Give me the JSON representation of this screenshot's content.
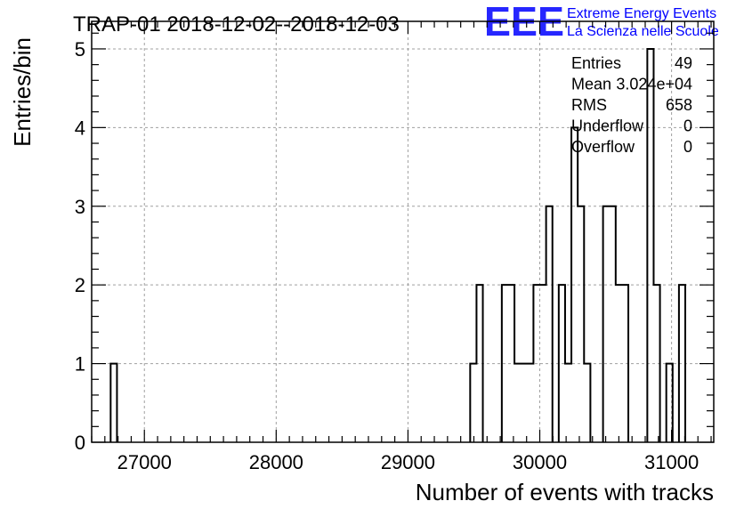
{
  "chart_data": {
    "type": "bar",
    "title": "TRAP-01 2018-12-02--2018-12-03",
    "xlabel": "Number of events with tracks",
    "ylabel": "Entries/bin",
    "xlim": [
      26600,
      31320
    ],
    "ylim": [
      0,
      5.35
    ],
    "x_ticks": [
      27000,
      28000,
      29000,
      30000,
      31000
    ],
    "y_ticks": [
      0,
      1,
      2,
      3,
      4,
      5
    ],
    "grid": true,
    "bin_width": 48,
    "bins": [
      {
        "x0": 26744,
        "value": 1
      },
      {
        "x0": 29472,
        "value": 1
      },
      {
        "x0": 29520,
        "value": 2
      },
      {
        "x0": 29712,
        "value": 2
      },
      {
        "x0": 29760,
        "value": 2
      },
      {
        "x0": 29808,
        "value": 1
      },
      {
        "x0": 29856,
        "value": 1
      },
      {
        "x0": 29904,
        "value": 1
      },
      {
        "x0": 29952,
        "value": 2
      },
      {
        "x0": 30000,
        "value": 2
      },
      {
        "x0": 30048,
        "value": 3
      },
      {
        "x0": 30144,
        "value": 2
      },
      {
        "x0": 30192,
        "value": 1
      },
      {
        "x0": 30240,
        "value": 4
      },
      {
        "x0": 30288,
        "value": 3
      },
      {
        "x0": 30336,
        "value": 1
      },
      {
        "x0": 30480,
        "value": 3
      },
      {
        "x0": 30528,
        "value": 3
      },
      {
        "x0": 30576,
        "value": 2
      },
      {
        "x0": 30624,
        "value": 2
      },
      {
        "x0": 30816,
        "value": 5
      },
      {
        "x0": 30864,
        "value": 2
      },
      {
        "x0": 30960,
        "value": 1
      },
      {
        "x0": 31056,
        "value": 2
      }
    ],
    "stats": {
      "placement": "top-right",
      "rows": [
        {
          "label": "Entries",
          "value": "49"
        },
        {
          "label": "Mean",
          "value": "3.024e+04"
        },
        {
          "label": "RMS",
          "value": "658"
        },
        {
          "label": "Underflow",
          "value": "0"
        },
        {
          "label": "Overflow",
          "value": "0"
        }
      ]
    },
    "logo": {
      "mark": "EEE",
      "line1": "Extreme Energy Events",
      "line2": "La Scienza nelle Scuole",
      "color": "#0000ff"
    },
    "colors": {
      "line": "#000000",
      "grid": "#a0a0a0"
    }
  }
}
